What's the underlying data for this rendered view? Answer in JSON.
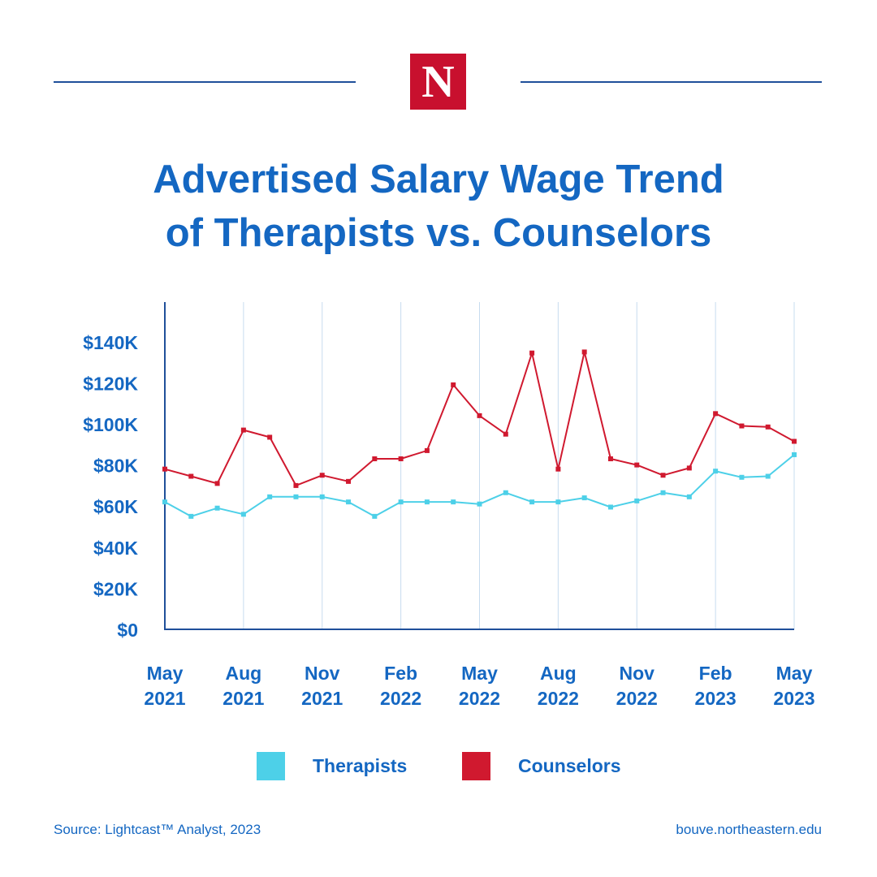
{
  "brand": {
    "logo_letter": "N",
    "accent": "#c8102e",
    "text_color": "#1467c2",
    "rule_color": "#1f4f9a"
  },
  "title_line1": "Advertised Salary Wage Trend",
  "title_line2": "of Therapists vs. Counselors",
  "chart_data": {
    "type": "line",
    "x": [
      "May 2021",
      "Jun 2021",
      "Jul 2021",
      "Aug 2021",
      "Sep 2021",
      "Oct 2021",
      "Nov 2021",
      "Dec 2021",
      "Jan 2022",
      "Feb 2022",
      "Mar 2022",
      "Apr 2022",
      "May 2022",
      "Jun 2022",
      "Jul 2022",
      "Aug 2022",
      "Sep 2022",
      "Oct 2022",
      "Nov 2022",
      "Dec 2022",
      "Jan 2023",
      "Feb 2023",
      "Mar 2023",
      "Apr 2023",
      "May 2023"
    ],
    "x_tick_labels": [
      {
        "month": "May",
        "year": "2021",
        "index": 0
      },
      {
        "month": "Aug",
        "year": "2021",
        "index": 3
      },
      {
        "month": "Nov",
        "year": "2021",
        "index": 6
      },
      {
        "month": "Feb",
        "year": "2022",
        "index": 9
      },
      {
        "month": "May",
        "year": "2022",
        "index": 12
      },
      {
        "month": "Aug",
        "year": "2022",
        "index": 15
      },
      {
        "month": "Nov",
        "year": "2022",
        "index": 18
      },
      {
        "month": "Feb",
        "year": "2023",
        "index": 21
      },
      {
        "month": "May",
        "year": "2023",
        "index": 24
      }
    ],
    "y_ticks": [
      {
        "value": 0,
        "label": "$0"
      },
      {
        "value": 20000,
        "label": "$20K"
      },
      {
        "value": 40000,
        "label": "$40K"
      },
      {
        "value": 60000,
        "label": "$60K"
      },
      {
        "value": 80000,
        "label": "$80K"
      },
      {
        "value": 100000,
        "label": "$100K"
      },
      {
        "value": 120000,
        "label": "$120K"
      },
      {
        "value": 140000,
        "label": "$140K"
      }
    ],
    "ylim": [
      0,
      160000
    ],
    "grid": "vertical",
    "series": [
      {
        "name": "Therapists",
        "color": "#4dd0e8",
        "values": [
          62000,
          55000,
          59000,
          56000,
          64500,
          64500,
          64500,
          62000,
          55000,
          62000,
          62000,
          62000,
          61000,
          66500,
          62000,
          62000,
          64000,
          59500,
          62500,
          66500,
          64500,
          77000,
          74000,
          74500,
          85000
        ]
      },
      {
        "name": "Counselors",
        "color": "#d0192f",
        "values": [
          78000,
          74500,
          71000,
          97000,
          93500,
          70000,
          75000,
          72000,
          83000,
          83000,
          87000,
          119000,
          104000,
          95000,
          134500,
          78000,
          135000,
          83000,
          80000,
          75000,
          78500,
          105000,
          99000,
          98500,
          91500
        ]
      }
    ],
    "legend": "bottom-center"
  },
  "footer": {
    "source": "Source: Lightcast™ Analyst, 2023",
    "url": "bouve.northeastern.edu"
  }
}
